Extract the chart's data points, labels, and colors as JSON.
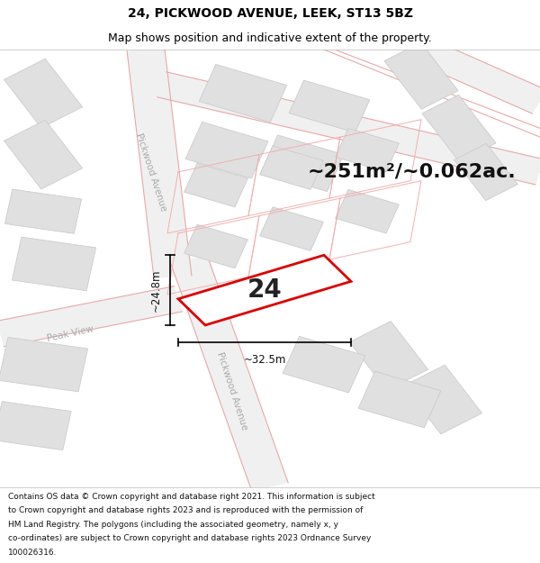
{
  "title_line1": "24, PICKWOOD AVENUE, LEEK, ST13 5BZ",
  "title_line2": "Map shows position and indicative extent of the property.",
  "area_text": "~251m²/~0.062ac.",
  "number_text": "24",
  "dim_height": "~24.8m",
  "dim_width": "~32.5m",
  "footer_lines": [
    "Contains OS data © Crown copyright and database right 2021. This information is subject",
    "to Crown copyright and database rights 2023 and is reproduced with the permission of",
    "HM Land Registry. The polygons (including the associated geometry, namely x, y",
    "co-ordinates) are subject to Crown copyright and database rights 2023 Ordnance Survey",
    "100026316."
  ],
  "map_bg": "#ffffff",
  "road_fill_color": "#f0f0f0",
  "road_outline_color": "#e8a8a8",
  "building_color": "#e0e0e0",
  "building_edge": "#cccccc",
  "highlight_color": "#dd0000",
  "street_label_color": "#aaaaaa",
  "title_fontsize": 10,
  "subtitle_fontsize": 9,
  "area_fontsize": 16,
  "number_fontsize": 20,
  "footer_fontsize": 6.5
}
